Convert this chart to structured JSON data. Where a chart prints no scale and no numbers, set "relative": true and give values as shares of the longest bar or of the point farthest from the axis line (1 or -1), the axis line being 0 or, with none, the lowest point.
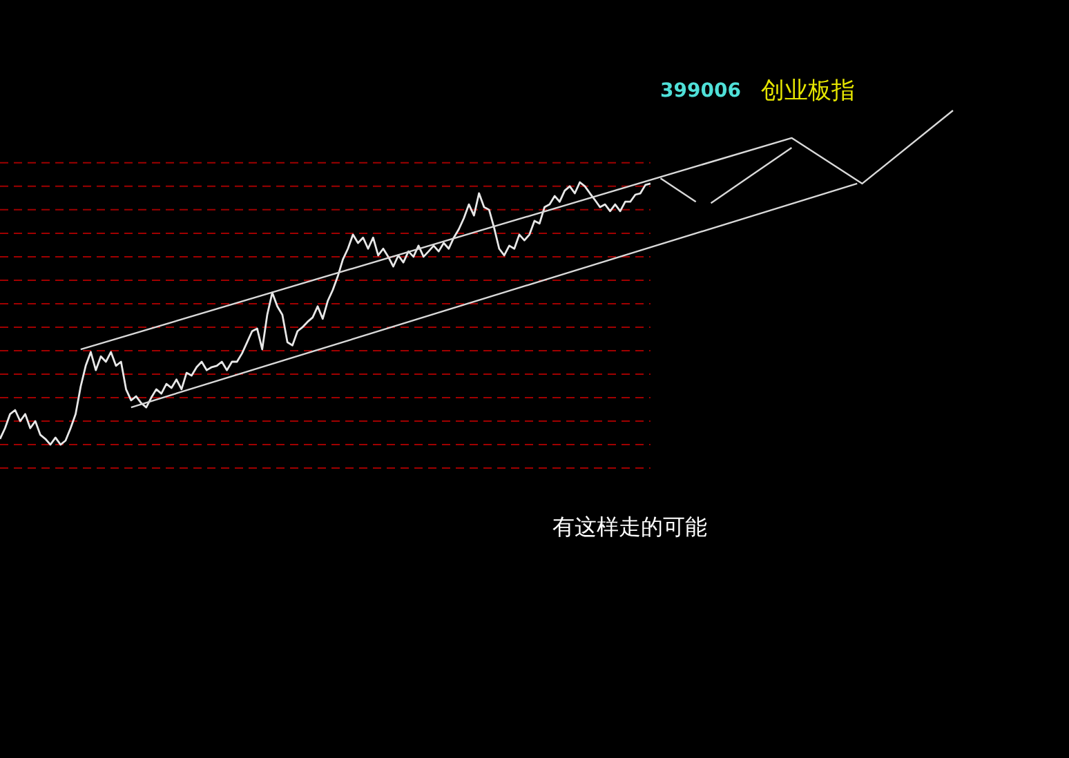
{
  "chart_data": {
    "type": "line",
    "relative": true,
    "title": "399006",
    "subtitle": "创业板指",
    "ref_lines": [
      {
        "axis": "y",
        "value": 0.844,
        "color": "#a00000",
        "line_style": "dashed"
      },
      {
        "axis": "y",
        "value": 0.774,
        "color": "#a00000",
        "line_style": "dashed"
      },
      {
        "axis": "y",
        "value": 0.704,
        "color": "#a00000",
        "line_style": "dashed"
      },
      {
        "axis": "y",
        "value": 0.634,
        "color": "#a00000",
        "line_style": "dashed"
      },
      {
        "axis": "y",
        "value": 0.564,
        "color": "#a00000",
        "line_style": "dashed"
      },
      {
        "axis": "y",
        "value": 0.494,
        "color": "#a00000",
        "line_style": "dashed"
      },
      {
        "axis": "y",
        "value": 0.424,
        "color": "#a00000",
        "line_style": "dashed"
      },
      {
        "axis": "y",
        "value": 0.354,
        "color": "#a00000",
        "line_style": "dashed"
      },
      {
        "axis": "y",
        "value": 0.284,
        "color": "#a00000",
        "line_style": "dashed"
      },
      {
        "axis": "y",
        "value": 0.214,
        "color": "#a00000",
        "line_style": "dashed"
      },
      {
        "axis": "y",
        "value": 0.144,
        "color": "#a00000",
        "line_style": "dashed"
      },
      {
        "axis": "y",
        "value": 0.074,
        "color": "#a00000",
        "line_style": "dashed"
      },
      {
        "axis": "y",
        "value": 0.004,
        "color": "#a00000",
        "line_style": "dashed"
      },
      {
        "axis": "y",
        "value": -0.066,
        "color": "#a00000",
        "line_style": "dashed"
      }
    ],
    "annotations": [
      "有这样走的可能"
    ],
    "categories": [
      null,
      null,
      null,
      null,
      null,
      null,
      null,
      null,
      null,
      null,
      null,
      null,
      null,
      null,
      null,
      null,
      null,
      null,
      null,
      null,
      null,
      null,
      null,
      null,
      null,
      null,
      null,
      null,
      null,
      null,
      null,
      null,
      null,
      null,
      null,
      null,
      null,
      null,
      null,
      null,
      null,
      null,
      null,
      null,
      null,
      null,
      null,
      null,
      null,
      null,
      null,
      null,
      null,
      null,
      null,
      null,
      null,
      null,
      null,
      null,
      null,
      null,
      null,
      null,
      null,
      null,
      null,
      null,
      null,
      null,
      null,
      null,
      null,
      null,
      null,
      null,
      null,
      null,
      null,
      null,
      null,
      null,
      null,
      null,
      null,
      null,
      null,
      null,
      null,
      null,
      null,
      null,
      null,
      null,
      null,
      null,
      null,
      null,
      null,
      null,
      null,
      null,
      null,
      null,
      null,
      null,
      null,
      null,
      null,
      null,
      null,
      null,
      null,
      null,
      null,
      null,
      null,
      null,
      null,
      null,
      null,
      null,
      null,
      null,
      null,
      null,
      null,
      null,
      null,
      null,
      null,
      null,
      null,
      null,
      null,
      null,
      null,
      null,
      null,
      null,
      null,
      null,
      null,
      null,
      null,
      null,
      null,
      null,
      null,
      null,
      null,
      null,
      null,
      null,
      null,
      null,
      null,
      null,
      null,
      null,
      null,
      null,
      null,
      null,
      null,
      null,
      null,
      null,
      null,
      null,
      null,
      null,
      null,
      null,
      null,
      null,
      null,
      null,
      null,
      null,
      null,
      null,
      null,
      null,
      null,
      null,
      null,
      null,
      null,
      null
    ],
    "series": [
      {
        "color": "#e8e8e8",
        "values": [
          0.021,
          0.053,
          0.095,
          0.107,
          0.074,
          0.095,
          0.053,
          0.074,
          0.033,
          0.021,
          0.004,
          0.025,
          0.004,
          0.016,
          0.053,
          0.095,
          0.177,
          0.239,
          0.28,
          0.226,
          0.267,
          0.251,
          0.28,
          0.239,
          0.251,
          0.169,
          0.136,
          0.148,
          0.128,
          0.115,
          0.144,
          0.169,
          0.156,
          0.185,
          0.173,
          0.198,
          0.169,
          0.218,
          0.21,
          0.235,
          0.251,
          0.226,
          0.235,
          0.239,
          0.251,
          0.226,
          0.251,
          0.251,
          0.276,
          0.309,
          0.342,
          0.35,
          0.288,
          0.391,
          0.457,
          0.416,
          0.391,
          0.309,
          0.3,
          0.342,
          0.354,
          0.37,
          0.383,
          0.416,
          0.379,
          0.432,
          0.465,
          0.506,
          0.556,
          0.588,
          0.63,
          0.605,
          0.621,
          0.588,
          0.621,
          0.568,
          0.588,
          0.564,
          0.535,
          0.568,
          0.547,
          0.58,
          0.564,
          0.597,
          0.564,
          0.58,
          0.597,
          0.58,
          0.605,
          0.588,
          0.621,
          0.646,
          0.679,
          0.72,
          0.687,
          0.753,
          0.712,
          0.704,
          0.65,
          0.588,
          0.568,
          0.597,
          0.588,
          0.63,
          0.613,
          0.63,
          0.671,
          0.663,
          0.712,
          0.72,
          0.745,
          0.728,
          0.761,
          0.774,
          0.753,
          0.786,
          0.774,
          0.753,
          0.733,
          0.712,
          0.72,
          0.7,
          0.72,
          0.7,
          0.728,
          0.728,
          0.749,
          0.753,
          0.778,
          0.782,
          null,
          null,
          null,
          null,
          null,
          null,
          null,
          null,
          null,
          null,
          null,
          null,
          null,
          null,
          null,
          null,
          null,
          null,
          null,
          null,
          null,
          null,
          null,
          null,
          null,
          null,
          null,
          null,
          null,
          null,
          null,
          null,
          null,
          null,
          null,
          null,
          null,
          null,
          null,
          null,
          null,
          null,
          null,
          null,
          null,
          null,
          null,
          null,
          null,
          null,
          null,
          null,
          null,
          null,
          null,
          null,
          null,
          null,
          null,
          null
        ]
      },
      {
        "color": "#d9d9d9",
        "values": [
          null,
          null,
          null,
          null,
          null,
          null,
          null,
          null,
          null,
          null,
          null,
          null,
          null,
          null,
          null,
          null,
          0.288,
          null,
          null,
          null,
          null,
          null,
          null,
          null,
          null,
          null,
          null,
          null,
          null,
          null,
          null,
          null,
          null,
          null,
          null,
          null,
          null,
          null,
          null,
          null,
          null,
          null,
          null,
          null,
          null,
          null,
          null,
          null,
          null,
          null,
          null,
          null,
          null,
          null,
          null,
          null,
          null,
          null,
          null,
          null,
          null,
          null,
          null,
          null,
          null,
          null,
          null,
          null,
          null,
          null,
          null,
          null,
          null,
          null,
          null,
          null,
          null,
          null,
          null,
          null,
          null,
          null,
          null,
          null,
          null,
          null,
          null,
          null,
          null,
          null,
          null,
          null,
          null,
          null,
          null,
          null,
          null,
          null,
          null,
          null,
          null,
          null,
          null,
          null,
          null,
          null,
          null,
          null,
          null,
          null,
          null,
          null,
          null,
          null,
          null,
          null,
          null,
          null,
          null,
          null,
          null,
          null,
          null,
          null,
          null,
          null,
          null,
          null,
          null,
          null,
          null,
          null,
          null,
          null,
          null,
          null,
          null,
          null,
          null,
          null,
          null,
          null,
          null,
          null,
          null,
          null,
          null,
          null,
          null,
          null,
          null,
          null,
          null,
          null,
          null,
          null,
          null,
          0.918,
          null,
          null,
          null,
          null,
          null,
          null,
          null,
          null,
          null,
          null,
          null,
          null,
          null,
          0.782,
          null,
          null,
          null,
          null,
          null,
          null,
          null,
          null,
          null,
          null,
          null,
          null,
          null,
          null,
          null,
          null,
          null,
          1.0
        ]
      },
      {
        "color": "#d9d9d9",
        "values": [
          null,
          null,
          null,
          null,
          null,
          null,
          null,
          null,
          null,
          null,
          null,
          null,
          null,
          null,
          null,
          null,
          null,
          null,
          null,
          null,
          null,
          null,
          null,
          null,
          null,
          null,
          0.115,
          null,
          null,
          null,
          null,
          null,
          null,
          null,
          null,
          null,
          null,
          null,
          null,
          null,
          null,
          null,
          null,
          null,
          null,
          null,
          null,
          null,
          null,
          null,
          null,
          null,
          null,
          null,
          null,
          null,
          null,
          null,
          null,
          null,
          null,
          null,
          null,
          null,
          null,
          null,
          null,
          null,
          null,
          null,
          null,
          null,
          null,
          null,
          null,
          null,
          null,
          null,
          null,
          null,
          null,
          null,
          null,
          null,
          null,
          null,
          null,
          null,
          null,
          null,
          null,
          null,
          null,
          null,
          null,
          null,
          null,
          null,
          null,
          null,
          null,
          null,
          null,
          null,
          null,
          null,
          null,
          null,
          null,
          null,
          null,
          null,
          null,
          null,
          null,
          null,
          null,
          null,
          null,
          null,
          null,
          null,
          null,
          null,
          null,
          null,
          null,
          null,
          null,
          null,
          null,
          null,
          null,
          null,
          null,
          null,
          null,
          null,
          null,
          null,
          null,
          null,
          null,
          null,
          null,
          null,
          null,
          null,
          null,
          null,
          null,
          null,
          null,
          null,
          null,
          null,
          null,
          null,
          null,
          null,
          null,
          null,
          null,
          null,
          null,
          null,
          null,
          null,
          null,
          null,
          0.782,
          null,
          null,
          null,
          null,
          null,
          null,
          null,
          null,
          null,
          null,
          null,
          null,
          null,
          null,
          null,
          null,
          null,
          null,
          null
        ]
      },
      {
        "color": "#d9d9d9",
        "values": [
          null,
          null,
          null,
          null,
          null,
          null,
          null,
          null,
          null,
          null,
          null,
          null,
          null,
          null,
          null,
          null,
          null,
          null,
          null,
          null,
          null,
          null,
          null,
          null,
          null,
          null,
          null,
          null,
          null,
          null,
          null,
          null,
          null,
          null,
          null,
          null,
          null,
          null,
          null,
          null,
          null,
          null,
          null,
          null,
          null,
          null,
          null,
          null,
          null,
          null,
          null,
          null,
          null,
          null,
          null,
          null,
          null,
          null,
          null,
          null,
          null,
          null,
          null,
          null,
          null,
          null,
          null,
          null,
          null,
          null,
          null,
          null,
          null,
          null,
          null,
          null,
          null,
          null,
          null,
          null,
          null,
          null,
          null,
          null,
          null,
          null,
          null,
          null,
          null,
          null,
          null,
          null,
          null,
          null,
          null,
          null,
          null,
          null,
          null,
          null,
          null,
          null,
          null,
          null,
          null,
          null,
          null,
          null,
          null,
          null,
          null,
          null,
          null,
          null,
          null,
          null,
          null,
          null,
          null,
          null,
          null,
          null,
          null,
          null,
          null,
          null,
          null,
          null,
          null,
          null,
          null,
          0.798,
          null,
          null,
          null,
          null,
          null,
          null,
          0.728,
          null,
          null,
          null,
          null,
          null,
          null,
          null,
          null,
          null,
          null,
          null,
          null,
          null,
          null,
          null,
          null,
          null,
          null,
          null,
          null,
          null,
          null,
          null,
          null,
          null,
          null,
          null,
          null,
          null,
          null,
          null,
          null,
          null,
          null,
          null,
          null,
          null,
          null,
          null,
          null,
          null,
          null,
          null,
          null,
          null,
          null,
          null,
          null,
          null,
          null,
          null
        ]
      },
      {
        "color": "#d9d9d9",
        "values": [
          null,
          null,
          null,
          null,
          null,
          null,
          null,
          null,
          null,
          null,
          null,
          null,
          null,
          null,
          null,
          null,
          null,
          null,
          null,
          null,
          null,
          null,
          null,
          null,
          null,
          null,
          null,
          null,
          null,
          null,
          null,
          null,
          null,
          null,
          null,
          null,
          null,
          null,
          null,
          null,
          null,
          null,
          null,
          null,
          null,
          null,
          null,
          null,
          null,
          null,
          null,
          null,
          null,
          null,
          null,
          null,
          null,
          null,
          null,
          null,
          null,
          null,
          null,
          null,
          null,
          null,
          null,
          null,
          null,
          null,
          null,
          null,
          null,
          null,
          null,
          null,
          null,
          null,
          null,
          null,
          null,
          null,
          null,
          null,
          null,
          null,
          null,
          null,
          null,
          null,
          null,
          null,
          null,
          null,
          null,
          null,
          null,
          null,
          null,
          null,
          null,
          null,
          null,
          null,
          null,
          null,
          null,
          null,
          null,
          null,
          null,
          null,
          null,
          null,
          null,
          null,
          null,
          null,
          null,
          null,
          null,
          null,
          null,
          null,
          null,
          null,
          null,
          null,
          null,
          null,
          null,
          null,
          null,
          null,
          null,
          null,
          null,
          null,
          null,
          null,
          null,
          0.724,
          null,
          null,
          null,
          null,
          null,
          null,
          null,
          null,
          null,
          null,
          null,
          null,
          null,
          null,
          null,
          0.889,
          null,
          null,
          null,
          null,
          null,
          null,
          null,
          null,
          null,
          null,
          null,
          null,
          null,
          null,
          null,
          null,
          null,
          null,
          null,
          null,
          null,
          null,
          null,
          null,
          null,
          null,
          null,
          null,
          null,
          null,
          null,
          null
        ]
      }
    ]
  }
}
